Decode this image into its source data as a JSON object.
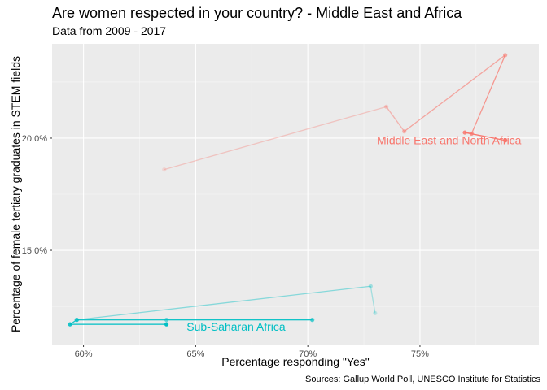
{
  "chart_data": {
    "type": "line",
    "title": "Are women respected in your country? - Middle East and Africa",
    "subtitle": "Data from 2009 - 2017",
    "xlabel": "Percentage responding \"Yes\"",
    "ylabel": "Percentage of female tertiary graduates in STEM fields",
    "caption": "Sources: Gallup World Poll, UNESCO Institute for Statistics",
    "xlim": [
      58.6,
      80.3
    ],
    "ylim": [
      10.8,
      24.2
    ],
    "x_ticks": [
      {
        "value": 60,
        "label": "60%"
      },
      {
        "value": 65,
        "label": "65%"
      },
      {
        "value": 70,
        "label": "70%"
      },
      {
        "value": 75,
        "label": "75%"
      }
    ],
    "y_ticks": [
      {
        "value": 15,
        "label": "15.0%"
      },
      {
        "value": 20,
        "label": "20.0%"
      }
    ],
    "grid": true,
    "legend": "none",
    "series": [
      {
        "name": "Middle East and North Africa",
        "color": "#F8766D",
        "label": "Middle East and North Africa",
        "label_at": {
          "x": 76.3,
          "y": 19.9
        },
        "points": [
          {
            "x": 63.6,
            "y": 18.6
          },
          {
            "x": 73.5,
            "y": 21.4
          },
          {
            "x": 74.3,
            "y": 20.3
          },
          {
            "x": 78.8,
            "y": 23.7
          },
          {
            "x": 77.3,
            "y": 20.2
          },
          {
            "x": 77.0,
            "y": 20.25
          },
          {
            "x": 78.8,
            "y": 19.9
          }
        ]
      },
      {
        "name": "Sub-Saharan Africa",
        "color": "#00BFC4",
        "label": "Sub-Saharan Africa",
        "label_at": {
          "x": 66.8,
          "y": 11.6
        },
        "points": [
          {
            "x": 73.0,
            "y": 12.2
          },
          {
            "x": 72.8,
            "y": 13.4
          },
          {
            "x": 59.7,
            "y": 11.9
          },
          {
            "x": 63.7,
            "y": 11.9
          },
          {
            "x": 70.2,
            "y": 11.9
          },
          {
            "x": 59.7,
            "y": 11.9
          },
          {
            "x": 59.4,
            "y": 11.7
          },
          {
            "x": 63.7,
            "y": 11.7
          }
        ]
      }
    ]
  }
}
